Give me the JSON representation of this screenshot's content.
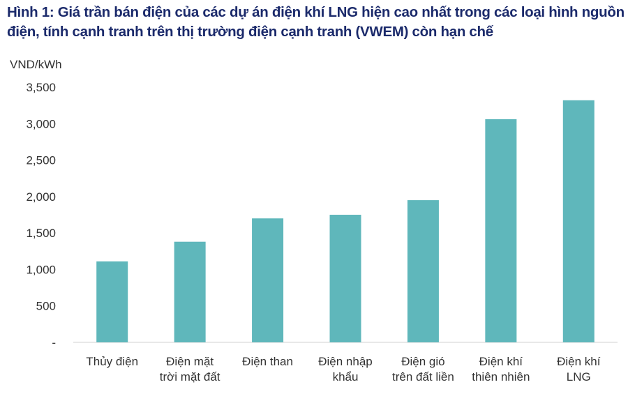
{
  "chart_data": {
    "type": "bar",
    "title": "Hình 1: Giá trần bán điện của các dự án điện khí LNG hiện cao nhất trong các loại hình nguồn điện, tính cạnh tranh trên thị trường điện cạnh tranh (VWEM) còn hạn chế",
    "ylabel": "VND/kWh",
    "xlabel": "",
    "categories": [
      [
        "Thủy điện"
      ],
      [
        "Điện mặt",
        "trời mặt đất"
      ],
      [
        "Điện than"
      ],
      [
        "Điện nhập",
        "khẩu"
      ],
      [
        "Điện gió",
        "trên đất liền"
      ],
      [
        "Điện khí",
        "thiên nhiên"
      ],
      [
        "Điện khí",
        "LNG"
      ]
    ],
    "values": [
      1110,
      1380,
      1700,
      1750,
      1950,
      3060,
      3320
    ],
    "ylim": [
      0,
      3500
    ],
    "yticks": [
      0,
      500,
      1000,
      1500,
      2000,
      2500,
      3000,
      3500
    ],
    "ytick_labels": [
      "-",
      "500",
      "1,000",
      "1,500",
      "2,000",
      "2,500",
      "3,000",
      "3,500"
    ],
    "grid": false,
    "bar_color": "#5fb7bb",
    "title_color": "#1b2a6b"
  }
}
